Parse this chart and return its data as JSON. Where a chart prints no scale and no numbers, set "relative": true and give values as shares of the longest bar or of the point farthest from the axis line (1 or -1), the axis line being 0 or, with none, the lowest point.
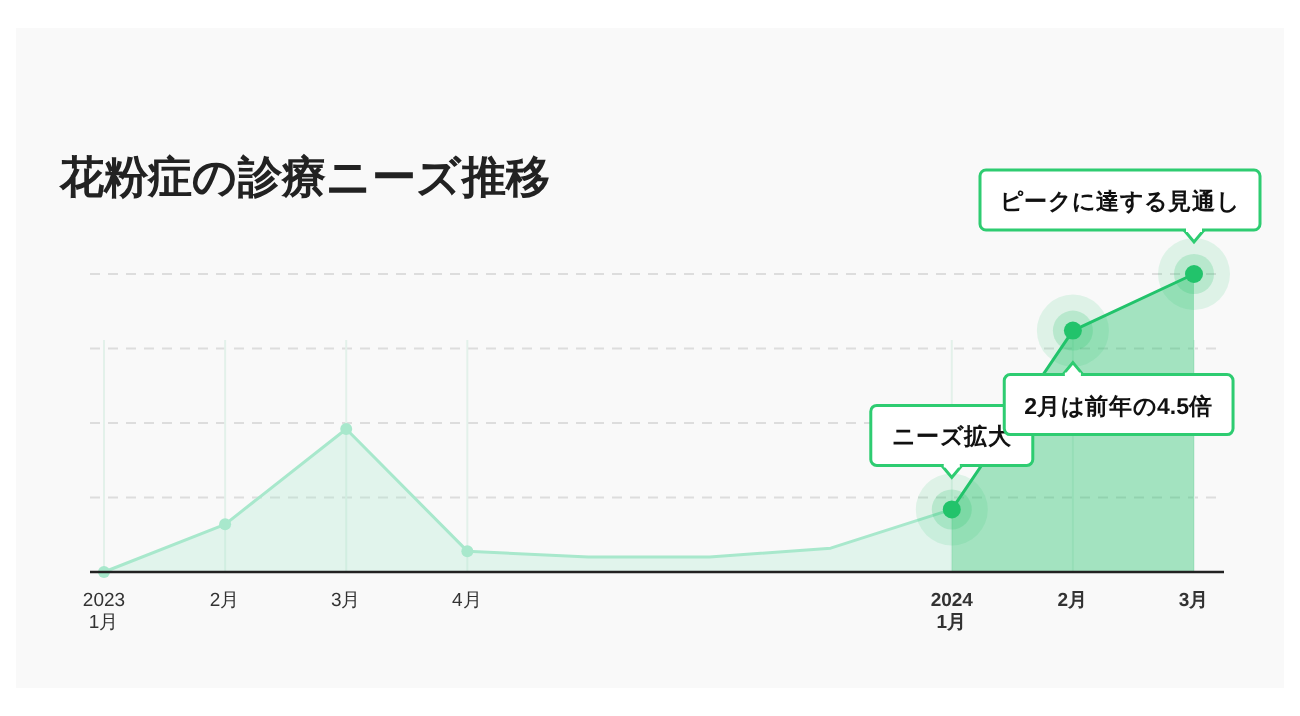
{
  "chart_data": {
    "type": "area",
    "title": "花粉症の診療ニーズ推移",
    "relative": true,
    "grid": true,
    "marker": "circle",
    "categories": [
      "2023\n1月",
      "2月",
      "3月",
      "4月",
      null,
      null,
      null,
      "2024\n1月",
      "2月",
      "3月"
    ],
    "series": [
      {
        "color": "#a8e8cc",
        "values": [
          0,
          0.16,
          0.48,
          0.07,
          0.05,
          0.05,
          0.08,
          0.21,
          null,
          null
        ]
      },
      {
        "color": "#22c36b",
        "values": [
          null,
          null,
          null,
          null,
          null,
          null,
          null,
          0.21,
          0.81,
          1
        ]
      }
    ],
    "annotations": [
      {
        "text": "ニーズ拡大",
        "x": "2024\n1月",
        "y": 0.21
      },
      {
        "text": "2月は前年の4.5倍",
        "y": 0.81
      },
      "ピークに達する見通し"
    ]
  }
}
